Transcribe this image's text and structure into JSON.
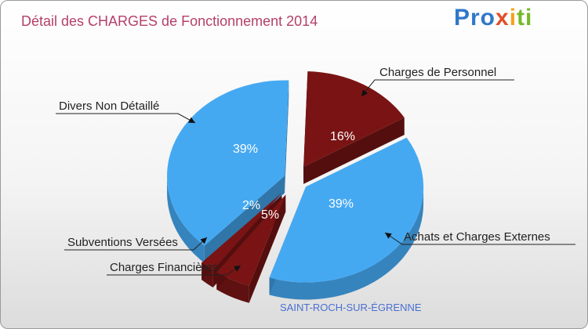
{
  "chart_data": {
    "type": "pie",
    "title": "Détail des CHARGES de Fonctionnement 2014",
    "subtitle": "SAINT-ROCH-SUR-ÉGRENNE",
    "slices": [
      {
        "label": "Charges de Personnel",
        "value": 16,
        "value_text": "16%",
        "color": "#7a1414"
      },
      {
        "label": "Achats et Charges Externes",
        "value": 39,
        "value_text": "39%",
        "color": "#45a9f2"
      },
      {
        "label": "Charges Financières",
        "value": 5,
        "value_text": "5%",
        "color": "#7a1414"
      },
      {
        "label": "Subventions Versées",
        "value": 2,
        "value_text": "2%",
        "color": "#7a1414"
      },
      {
        "label": "Divers Non Détaillé",
        "value": 39,
        "value_text": "39%",
        "color": "#45a9f2"
      }
    ]
  },
  "branding": {
    "logo_text": "Proxiti"
  }
}
